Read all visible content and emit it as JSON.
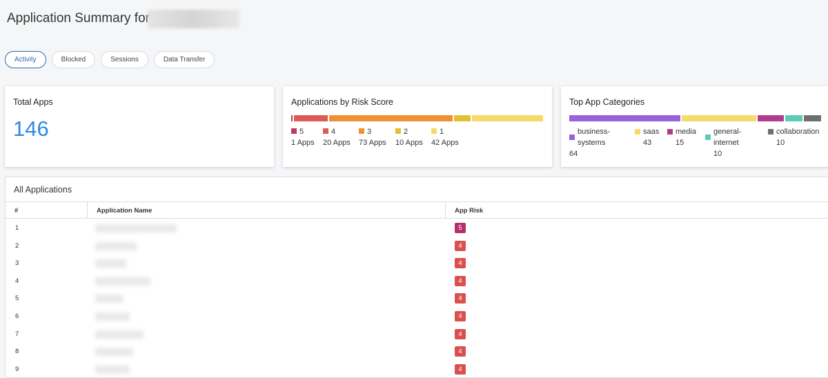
{
  "header": {
    "title": "Application Summary for"
  },
  "tabs": [
    "Activity",
    "Blocked",
    "Sessions",
    "Data Transfer"
  ],
  "total_apps": {
    "title": "Total Apps",
    "value": 146
  },
  "risk_score": {
    "title": "Applications by Risk Score",
    "items": [
      {
        "score": 5,
        "count": 1,
        "count_label": "1 Apps",
        "color": "#c2366b"
      },
      {
        "score": 4,
        "count": 20,
        "count_label": "20 Apps",
        "color": "#dd5a55"
      },
      {
        "score": 3,
        "count": 73,
        "count_label": "73 Apps",
        "color": "#ee9034"
      },
      {
        "score": 2,
        "count": 10,
        "count_label": "10 Apps",
        "color": "#e2c02f"
      },
      {
        "score": 1,
        "count": 42,
        "count_label": "42 Apps",
        "color": "#f6da6a"
      }
    ]
  },
  "categories": {
    "title": "Top App Categories",
    "items": [
      {
        "name": "business-systems",
        "count": 64,
        "color": "#9a62d8"
      },
      {
        "name": "saas",
        "count": 43,
        "color": "#f6da6a"
      },
      {
        "name": "media",
        "count": 15,
        "color": "#b23b8c"
      },
      {
        "name": "general-internet",
        "count": 10,
        "color": "#5dcbb8"
      },
      {
        "name": "collaboration",
        "count": 10,
        "color": "#6f6f6f"
      }
    ]
  },
  "table": {
    "title": "All Applications",
    "columns": [
      "#",
      "Application Name",
      "App Risk"
    ],
    "rows": [
      [
        1,
        5
      ],
      [
        2,
        4
      ],
      [
        3,
        4
      ],
      [
        4,
        4
      ],
      [
        5,
        4
      ],
      [
        6,
        4
      ],
      [
        7,
        4
      ],
      [
        8,
        4
      ],
      [
        9,
        4
      ]
    ]
  }
}
